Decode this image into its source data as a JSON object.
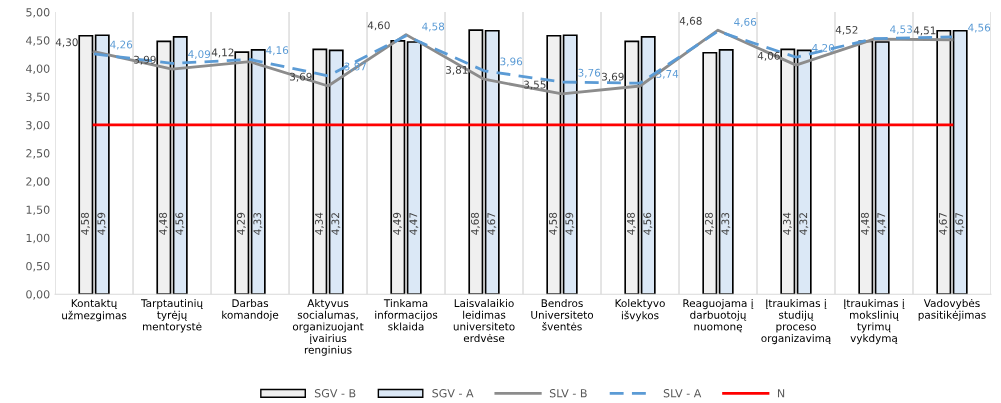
{
  "chart_data": {
    "type": "bar",
    "categories": [
      "Kontaktų užmezgimas",
      "Tarptautinių tyrėjų mentorystė",
      "Darbas komandoje",
      "Aktyvus socialumas, organizuojant įvairius renginius",
      "Tinkama informacijos sklaida",
      "Laisvalaikio leidimas universiteto erdvėse",
      "Bendros Universiteto šventės",
      "Kolektyvo išvykos",
      "Reaguojama į darbuotojų nuomonę",
      "Įtraukimas į studijų proceso organizavimą",
      "Įtraukimas į mokslinių tyrimų vykdymą",
      "Vadovybės pasitikėjimas"
    ],
    "series": [
      {
        "name": "SGV - B",
        "type": "bar",
        "color": "#f0f0f0",
        "values": [
          4.58,
          4.48,
          4.29,
          4.34,
          4.49,
          4.68,
          4.58,
          4.48,
          4.28,
          4.34,
          4.48,
          4.67
        ],
        "value_labels": [
          "4,58",
          "4,48",
          "4,29",
          "4,34",
          "4,49",
          "4,68",
          "4,58",
          "4,48",
          "4,28",
          "4,34",
          "4,48",
          "4,67"
        ]
      },
      {
        "name": "SGV - A",
        "type": "bar",
        "color": "#dbe8f6",
        "values": [
          4.59,
          4.56,
          4.33,
          4.32,
          4.47,
          4.67,
          4.59,
          4.56,
          4.33,
          4.32,
          4.47,
          4.67
        ],
        "value_labels": [
          "4,59",
          "4,56",
          "4,33",
          "4,32",
          "4,47",
          "4,67",
          "4,59",
          "4,56",
          "4,33",
          "4,32",
          "4,47",
          "4,67"
        ]
      },
      {
        "name": "SLV - B",
        "type": "line",
        "color": "#8c8c8c",
        "line_style": "solid",
        "values": [
          4.3,
          3.99,
          4.12,
          3.69,
          4.6,
          3.81,
          3.55,
          3.69,
          4.68,
          4.06,
          4.52,
          4.51
        ],
        "value_labels": [
          "4,30",
          "3,99",
          "4,12",
          "3,69",
          "4,60",
          "3,81",
          "3,55",
          "3,69",
          "4,68",
          "4,06",
          "4,52",
          "4,51"
        ]
      },
      {
        "name": "SLV - A",
        "type": "line",
        "color": "#5b9bd5",
        "line_style": "dashed",
        "values": [
          4.26,
          4.09,
          4.16,
          3.87,
          4.58,
          3.96,
          3.76,
          3.74,
          4.66,
          4.2,
          4.53,
          4.56
        ],
        "value_labels": [
          "4,26",
          "4,09",
          "4,16",
          "3,87",
          "4,58",
          "3,96",
          "3,76",
          "3,74",
          "4,66",
          "4,20",
          "4,53",
          "4,56"
        ]
      },
      {
        "name": "N",
        "type": "line",
        "color": "#ff0000",
        "line_style": "solid",
        "values": [
          3,
          3,
          3,
          3,
          3,
          3,
          3,
          3,
          3,
          3,
          3,
          3
        ]
      }
    ],
    "ylim": [
      0,
      5
    ],
    "yticks": [
      {
        "value": 0,
        "label": "0,00"
      },
      {
        "value": 0.5,
        "label": "0,50"
      },
      {
        "value": 1,
        "label": "1,00"
      },
      {
        "value": 1.5,
        "label": "1,50"
      },
      {
        "value": 2,
        "label": "2,00"
      },
      {
        "value": 2.5,
        "label": "2,50"
      },
      {
        "value": 3,
        "label": "3,00"
      },
      {
        "value": 3.5,
        "label": "3,50"
      },
      {
        "value": 4,
        "label": "4,00"
      },
      {
        "value": 4.5,
        "label": "4,50"
      },
      {
        "value": 5,
        "label": "5,00"
      }
    ],
    "grid": "x",
    "legend": "bottom",
    "marker": "none"
  }
}
